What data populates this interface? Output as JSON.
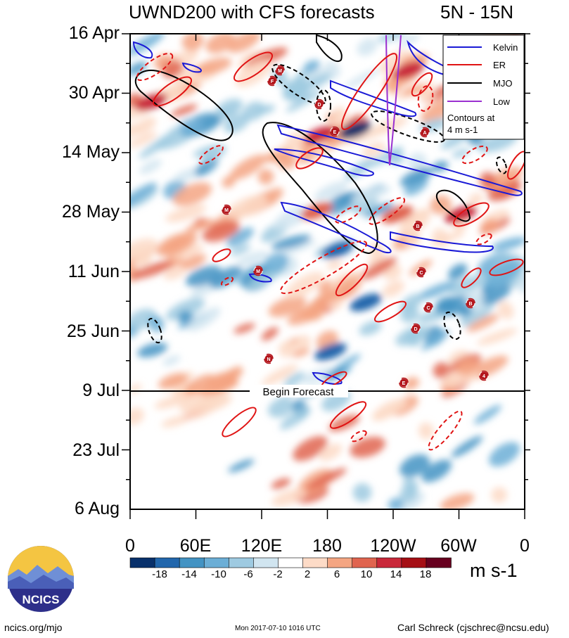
{
  "chart_data": {
    "type": "heatmap",
    "title": "UWND200 with CFS forecasts",
    "region": "5N - 15N",
    "y_tick_labels": [
      "16 Apr",
      "30 Apr",
      "14 May",
      "28 May",
      "11 Jun",
      "25 Jun",
      "9 Jul",
      "23 Jul",
      "6 Aug"
    ],
    "x_tick_labels": [
      "0",
      "60E",
      "120E",
      "180",
      "120W",
      "60W",
      "0"
    ],
    "x_range_deg": [
      0,
      360
    ],
    "forecast_marker": {
      "label": "Begin Forecast",
      "date": "9 Jul"
    },
    "colorbar": {
      "levels": [
        "-18",
        "-14",
        "-10",
        "-6",
        "-2",
        "2",
        "6",
        "10",
        "14",
        "18"
      ],
      "colors": [
        "#08306b",
        "#2166ac",
        "#4393c3",
        "#6baed6",
        "#9ecae1",
        "#d1e5f0",
        "#ffffff",
        "#fddbc7",
        "#f4a582",
        "#e0644f",
        "#c9283a",
        "#a50f15",
        "#67001f"
      ],
      "units": "m s-1"
    },
    "legend": {
      "placement": "top-right",
      "entries": [
        {
          "name": "Kelvin",
          "color": "#1a1ad6"
        },
        {
          "name": "ER",
          "color": "#e01414"
        },
        {
          "name": "MJO",
          "color": "#000000"
        },
        {
          "name": "Low",
          "color": "#9b30d0"
        }
      ],
      "note_line1": "Contours at",
      "note_line2": "4 m s-1"
    }
  },
  "logo": {
    "text": "NCICS"
  },
  "footer": {
    "url": "ncics.org/mjo",
    "timestamp": "Mon 2017-07-10 1016 UTC",
    "author": "Carl Schreck (cjschrec@ncsu.edu)"
  }
}
